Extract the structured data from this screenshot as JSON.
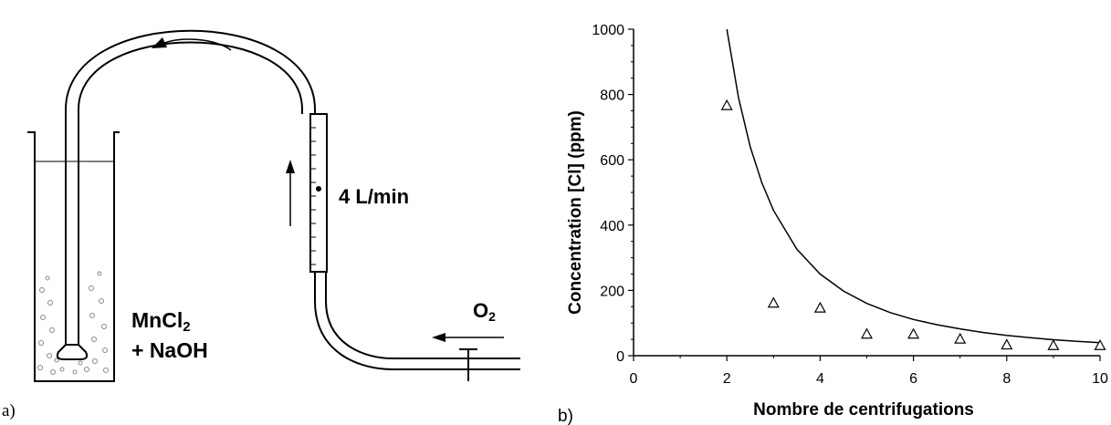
{
  "panel_a": {
    "panel_label": "a)",
    "solution_line1": "MnCl",
    "solution_line1_sub": "2",
    "solution_line2": "+ NaOH",
    "flow_rate": "4 L/min",
    "gas_label": "O",
    "gas_label_sub": "2"
  },
  "panel_b": {
    "panel_label": "b)"
  },
  "chart_data": {
    "type": "scatter",
    "title": "",
    "xlabel": "Nombre de centrifugations",
    "ylabel": "Concentration [Cl] (ppm)",
    "xlim": [
      0,
      10
    ],
    "ylim": [
      0,
      1000
    ],
    "xticks": [
      0,
      2,
      4,
      6,
      8,
      10
    ],
    "yticks": [
      0,
      200,
      400,
      600,
      800,
      1000
    ],
    "grid": false,
    "marker": "open-triangle",
    "series": [
      {
        "x": [
          2,
          3,
          4,
          5,
          6,
          7,
          8,
          9,
          10
        ],
        "y": [
          765,
          160,
          145,
          65,
          65,
          50,
          32,
          30,
          30
        ]
      }
    ],
    "fit_curve": {
      "type": "curve",
      "x": [
        2,
        2.25,
        2.5,
        2.75,
        3,
        3.5,
        4,
        4.5,
        5,
        5.5,
        6,
        6.5,
        7,
        7.5,
        8,
        8.5,
        9,
        9.5,
        10
      ],
      "y": [
        1000,
        790,
        640,
        530,
        445,
        326,
        250,
        198,
        160,
        132,
        111,
        95,
        82,
        71,
        62,
        55,
        49,
        44,
        40
      ]
    }
  }
}
